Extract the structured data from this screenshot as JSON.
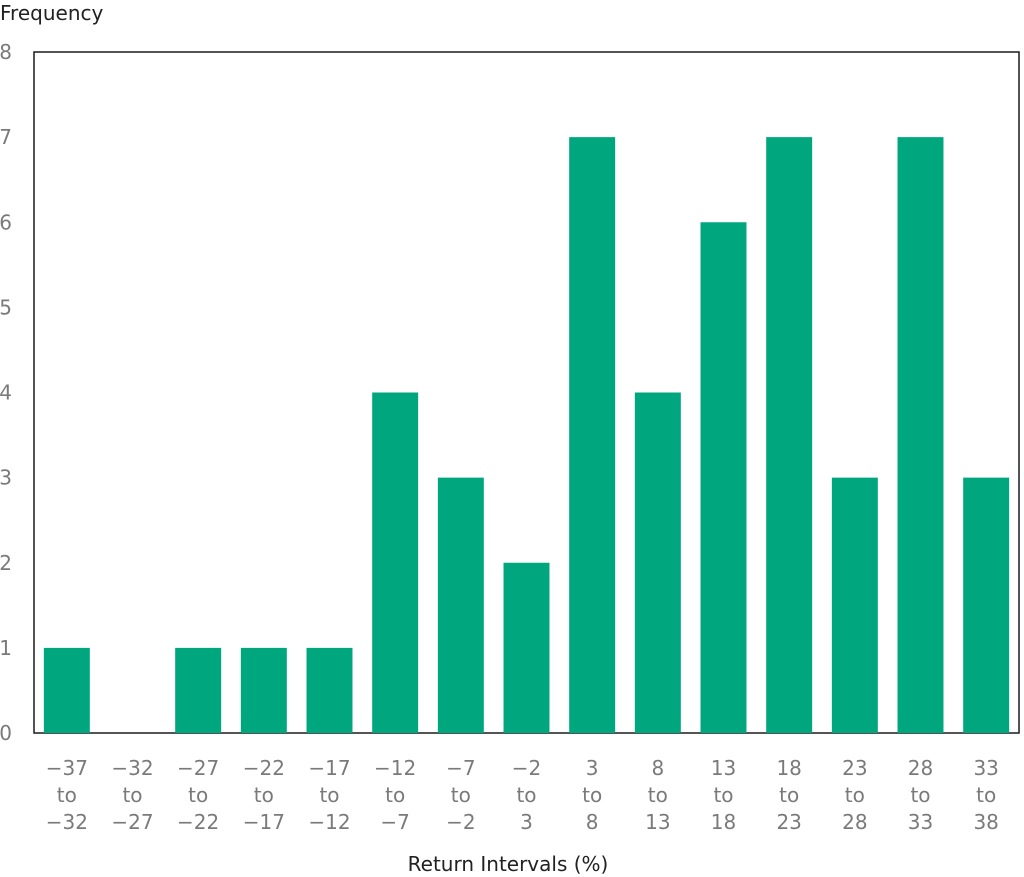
{
  "chart_data": {
    "type": "bar",
    "ylabel": "Frequency",
    "xlabel": "Return Intervals (%)",
    "ylim": [
      0,
      8
    ],
    "y_ticks": [
      0,
      1,
      2,
      3,
      4,
      5,
      6,
      7,
      8
    ],
    "categories": [
      [
        "−37",
        "to",
        "−32"
      ],
      [
        "−32",
        "to",
        "−27"
      ],
      [
        "−27",
        "to",
        "−22"
      ],
      [
        "−22",
        "to",
        "−17"
      ],
      [
        "−17",
        "to",
        "−12"
      ],
      [
        "−12",
        "to",
        "−7"
      ],
      [
        "−7",
        "to",
        "−2"
      ],
      [
        "−2",
        "to",
        "3"
      ],
      [
        "3",
        "to",
        "8"
      ],
      [
        "8",
        "to",
        "13"
      ],
      [
        "13",
        "to",
        "18"
      ],
      [
        "18",
        "to",
        "23"
      ],
      [
        "23",
        "to",
        "28"
      ],
      [
        "28",
        "to",
        "33"
      ],
      [
        "33",
        "to",
        "38"
      ]
    ],
    "values": [
      1,
      0,
      1,
      1,
      1,
      4,
      3,
      2,
      7,
      4,
      6,
      7,
      3,
      7,
      3
    ],
    "bar_color": "#00a67e",
    "grid": false
  }
}
